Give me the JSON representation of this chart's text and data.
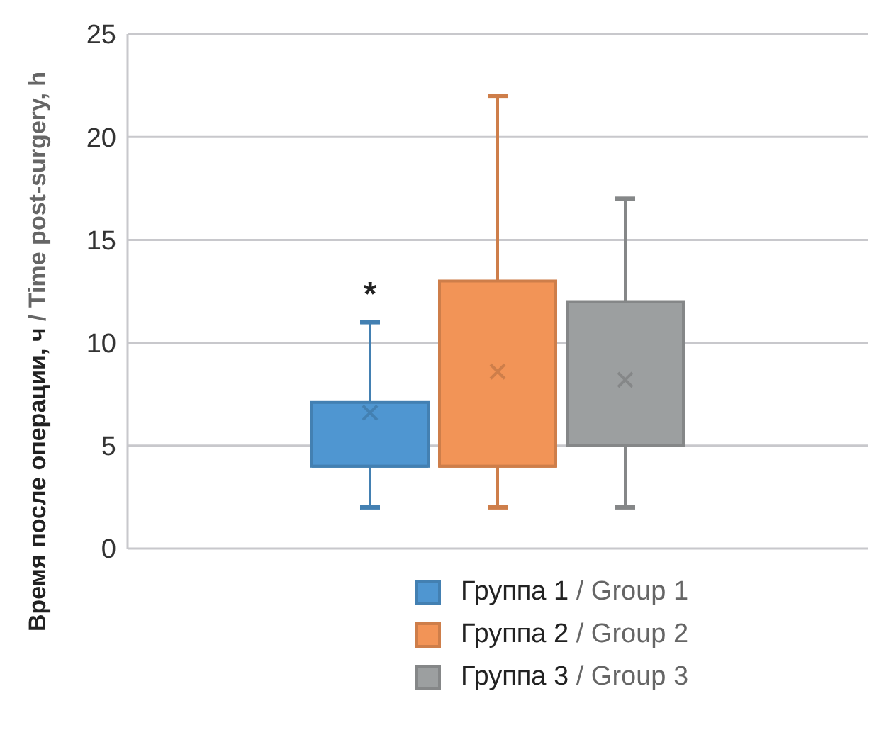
{
  "chart_data": {
    "type": "box",
    "ylabel": "Время после операции, ч / Time post-surgery, h",
    "categories": [
      null
    ],
    "series": [
      {
        "name": "Группа 1 / Group 1",
        "color": "#4f96d1",
        "boxes": [
          {
            "low": 2,
            "q1": 4,
            "median": 4,
            "q3": 7.1,
            "high": 11,
            "mean": 6.6
          }
        ]
      },
      {
        "name": "Группа 2 / Group 2",
        "color": "#f29457",
        "boxes": [
          {
            "low": 2,
            "q1": 4,
            "median": 4,
            "q3": 13,
            "high": 22,
            "mean": 8.6
          }
        ]
      },
      {
        "name": "Группа 3 / Group 3",
        "color": "#9c9fa0",
        "boxes": [
          {
            "low": 2,
            "q1": 5,
            "median": 5,
            "q3": 12,
            "high": 17,
            "mean": 8.2
          }
        ]
      }
    ],
    "ylim": [
      0,
      25
    ],
    "yticks": [
      0,
      5,
      10,
      15,
      20,
      25
    ],
    "grid": "y",
    "legend": "bottom",
    "annotations": [
      "*"
    ]
  }
}
